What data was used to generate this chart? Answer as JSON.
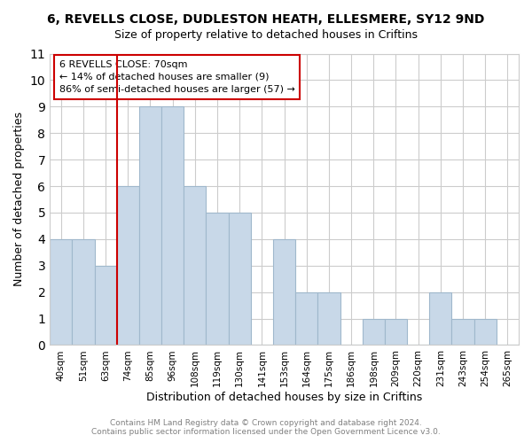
{
  "title": "6, REVELLS CLOSE, DUDLESTON HEATH, ELLESMERE, SY12 9ND",
  "subtitle": "Size of property relative to detached houses in Criftins",
  "xlabel": "Distribution of detached houses by size in Criftins",
  "ylabel": "Number of detached properties",
  "bar_labels": [
    "40sqm",
    "51sqm",
    "63sqm",
    "74sqm",
    "85sqm",
    "96sqm",
    "108sqm",
    "119sqm",
    "130sqm",
    "141sqm",
    "153sqm",
    "164sqm",
    "175sqm",
    "186sqm",
    "198sqm",
    "209sqm",
    "220sqm",
    "231sqm",
    "243sqm",
    "254sqm",
    "265sqm"
  ],
  "bar_values": [
    4,
    4,
    3,
    6,
    9,
    9,
    6,
    5,
    5,
    0,
    4,
    2,
    2,
    0,
    1,
    1,
    0,
    2,
    1,
    1,
    0
  ],
  "bar_color": "#c8d8e8",
  "bar_edgecolor": "#a0b8cc",
  "vline_x": 2.5,
  "vline_color": "#cc0000",
  "ylim": [
    0,
    11
  ],
  "yticks": [
    0,
    1,
    2,
    3,
    4,
    5,
    6,
    7,
    8,
    9,
    10,
    11
  ],
  "annotation_title": "6 REVELLS CLOSE: 70sqm",
  "annotation_line1": "← 14% of detached houses are smaller (9)",
  "annotation_line2": "86% of semi-detached houses are larger (57) →",
  "footer_line1": "Contains HM Land Registry data © Crown copyright and database right 2024.",
  "footer_line2": "Contains public sector information licensed under the Open Government Licence v3.0.",
  "background_color": "#ffffff",
  "grid_color": "#cccccc"
}
